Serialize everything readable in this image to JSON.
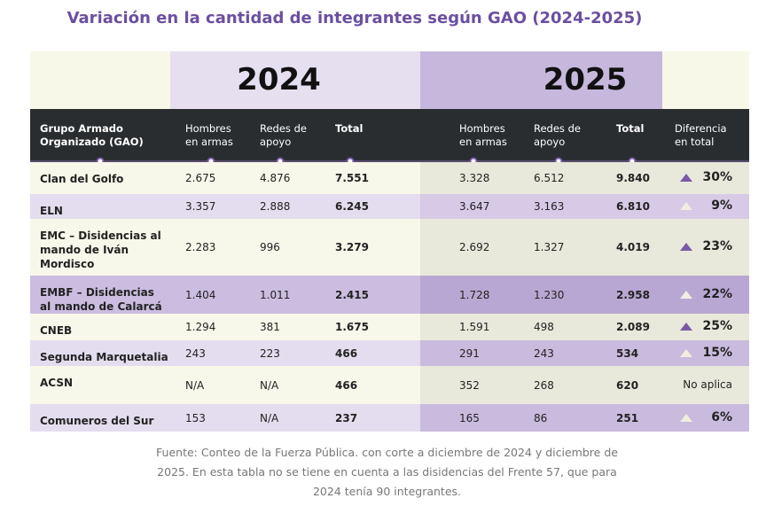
{
  "title": "Variación en la cantidad de integrantes según GAO (2024-2025)",
  "years": [
    "2024",
    "2025"
  ],
  "table": {
    "headers": [
      "Grupo Armado\nOrganizado (GAO)",
      "Hombres\nen armas",
      "Redes de\napoyo",
      "Total",
      "Hombres\nen armas",
      "Redes de\napoyo",
      "Total",
      "Diferencia\nen total"
    ],
    "rows": [
      [
        "Clan del Golfo",
        "2.675",
        "4.876",
        "7.551",
        "3.328",
        "6.512",
        "9.840",
        "30%"
      ],
      [
        "ELN",
        "3.357",
        "2.888",
        "6.245",
        "3.647",
        "3.163",
        "6.810",
        "9%"
      ],
      [
        "EMC – Disidencias al\nmando de Iván\nMordisco",
        "2.283",
        "996",
        "3.279",
        "2.692",
        "1.327",
        "4.019",
        "23%"
      ],
      [
        "EMBF – Disidencias\nal mando de Calarcá",
        "1.404",
        "1.011",
        "2.415",
        "1.728",
        "1.230",
        "2.958",
        "22%"
      ],
      [
        "CNEB",
        "1.294",
        "381",
        "1.675",
        "1.591",
        "498",
        "2.089",
        "25%"
      ],
      [
        "Segunda Marquetalia",
        "243",
        "223",
        "466",
        "291",
        "243",
        "534",
        "15%"
      ],
      [
        "ACSN",
        "N/A",
        "N/A",
        "466",
        "352",
        "268",
        "620",
        "No aplica"
      ],
      [
        "Comuneros del Sur",
        "153",
        "N/A",
        "237",
        "165",
        "86",
        "251",
        "6%"
      ]
    ],
    "markers": [
      "#7a5aa8",
      "#efeee0",
      "#7a5aa8",
      "#efeee0",
      "#7a5aa8",
      "#efeee0",
      null,
      "#efeee0"
    ]
  },
  "footnote": [
    "Fuente: Conteo de la Fuerza Pública. con corte a diciembre de 2024 y diciembre de",
    "2025. En esta tabla no se tiene en cuenta a las disidencias del Frente 57, que para",
    "2024 tenía 90 integrantes."
  ]
}
